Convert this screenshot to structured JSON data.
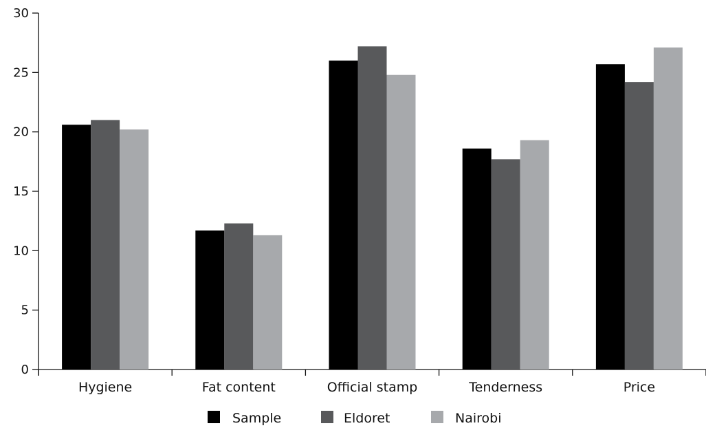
{
  "chart_data": {
    "type": "bar",
    "title": "",
    "xlabel": "",
    "ylabel": "",
    "categories": [
      "Hygiene",
      "Fat content",
      "Official stamp",
      "Tenderness",
      "Price"
    ],
    "series": [
      {
        "name": "Sample",
        "color": "#000000",
        "values": [
          20.6,
          11.7,
          26.0,
          18.6,
          25.7
        ]
      },
      {
        "name": "Eldoret",
        "color": "#58595b",
        "values": [
          21.0,
          12.3,
          27.2,
          17.7,
          24.2
        ]
      },
      {
        "name": "Nairobi",
        "color": "#a7a9ac",
        "values": [
          20.2,
          11.3,
          24.8,
          19.3,
          27.1
        ]
      }
    ],
    "ylim": [
      0,
      30
    ],
    "yticks": [
      0,
      5,
      10,
      15,
      20,
      25,
      30
    ],
    "grid": false,
    "legend_position": "bottom"
  }
}
